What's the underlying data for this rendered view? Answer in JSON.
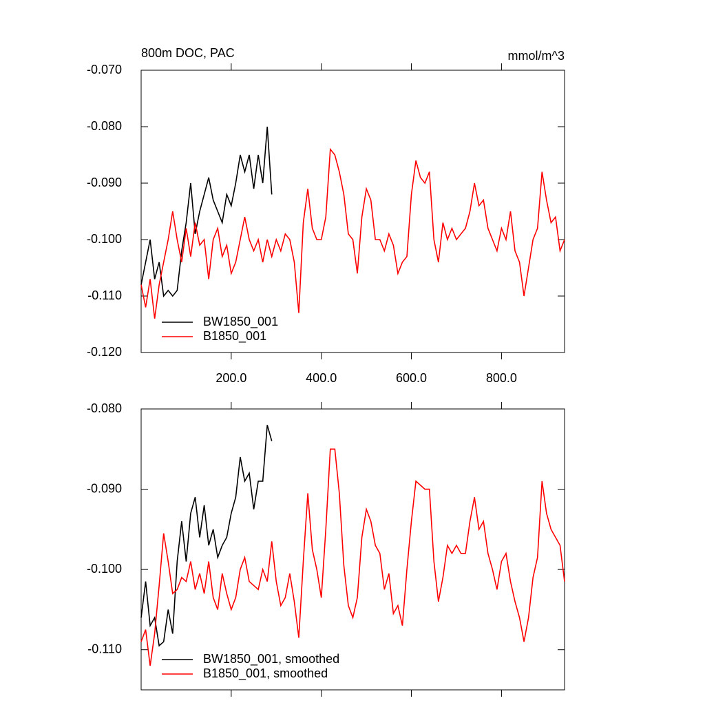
{
  "chart_data": [
    {
      "type": "line",
      "title": "800m DOC, PAC",
      "units": "mmol/m^3",
      "xlim": [
        0,
        940
      ],
      "ylim": [
        -0.12,
        -0.07
      ],
      "xticks": [
        {
          "value": 200,
          "label": "200.0"
        },
        {
          "value": 400,
          "label": "400.0"
        },
        {
          "value": 600,
          "label": "600.0"
        },
        {
          "value": 800,
          "label": "800.0"
        }
      ],
      "yticks": [
        {
          "value": -0.12,
          "label": "-0.120"
        },
        {
          "value": -0.11,
          "label": "-0.110"
        },
        {
          "value": -0.1,
          "label": "-0.100"
        },
        {
          "value": -0.09,
          "label": "-0.090"
        },
        {
          "value": -0.08,
          "label": "-0.080"
        },
        {
          "value": -0.07,
          "label": "-0.070"
        }
      ],
      "legend": "lower left",
      "series": [
        {
          "name": "BW1850_001",
          "color": "#000000",
          "x": [
            0,
            10,
            20,
            30,
            40,
            50,
            60,
            70,
            80,
            90,
            100,
            110,
            120,
            130,
            140,
            150,
            160,
            170,
            180,
            190,
            200,
            210,
            220,
            230,
            240,
            250,
            260,
            270,
            280,
            290
          ],
          "values": [
            -0.108,
            -0.104,
            -0.1,
            -0.107,
            -0.104,
            -0.11,
            -0.109,
            -0.11,
            -0.109,
            -0.102,
            -0.097,
            -0.09,
            -0.099,
            -0.095,
            -0.092,
            -0.089,
            -0.093,
            -0.095,
            -0.097,
            -0.092,
            -0.094,
            -0.09,
            -0.085,
            -0.088,
            -0.085,
            -0.091,
            -0.085,
            -0.09,
            -0.08,
            -0.092
          ]
        },
        {
          "name": "B1850_001",
          "color": "#ff0000",
          "x": [
            0,
            10,
            20,
            30,
            40,
            50,
            60,
            70,
            80,
            90,
            100,
            110,
            120,
            130,
            140,
            150,
            160,
            170,
            180,
            190,
            200,
            210,
            220,
            230,
            240,
            250,
            260,
            270,
            280,
            290,
            300,
            310,
            320,
            330,
            340,
            350,
            360,
            370,
            380,
            390,
            400,
            410,
            420,
            430,
            440,
            450,
            460,
            470,
            480,
            490,
            500,
            510,
            520,
            530,
            540,
            550,
            560,
            570,
            580,
            590,
            600,
            610,
            620,
            630,
            640,
            650,
            660,
            670,
            680,
            690,
            700,
            710,
            720,
            730,
            740,
            750,
            760,
            770,
            780,
            790,
            800,
            810,
            820,
            830,
            840,
            850,
            860,
            870,
            880,
            890,
            900,
            910,
            920,
            930,
            940
          ],
          "values": [
            -0.108,
            -0.112,
            -0.107,
            -0.114,
            -0.108,
            -0.104,
            -0.1,
            -0.095,
            -0.1,
            -0.104,
            -0.098,
            -0.103,
            -0.097,
            -0.101,
            -0.1,
            -0.107,
            -0.1,
            -0.098,
            -0.103,
            -0.101,
            -0.106,
            -0.104,
            -0.1,
            -0.096,
            -0.1,
            -0.102,
            -0.1,
            -0.104,
            -0.1,
            -0.103,
            -0.1,
            -0.102,
            -0.099,
            -0.1,
            -0.104,
            -0.113,
            -0.097,
            -0.091,
            -0.098,
            -0.1,
            -0.1,
            -0.096,
            -0.084,
            -0.085,
            -0.088,
            -0.092,
            -0.099,
            -0.1,
            -0.106,
            -0.096,
            -0.091,
            -0.093,
            -0.1,
            -0.1,
            -0.102,
            -0.099,
            -0.101,
            -0.106,
            -0.104,
            -0.103,
            -0.092,
            -0.086,
            -0.089,
            -0.09,
            -0.088,
            -0.1,
            -0.104,
            -0.097,
            -0.1,
            -0.098,
            -0.1,
            -0.099,
            -0.098,
            -0.095,
            -0.09,
            -0.094,
            -0.093,
            -0.098,
            -0.1,
            -0.102,
            -0.098,
            -0.1,
            -0.095,
            -0.102,
            -0.104,
            -0.11,
            -0.105,
            -0.1,
            -0.098,
            -0.088,
            -0.093,
            -0.097,
            -0.096,
            -0.102,
            -0.1
          ]
        }
      ]
    },
    {
      "type": "line",
      "xlim": [
        0,
        940
      ],
      "ylim": [
        -0.115,
        -0.08
      ],
      "xticks": [
        200,
        400,
        600,
        800
      ],
      "yticks": [
        {
          "value": -0.11,
          "label": "-0.110"
        },
        {
          "value": -0.1,
          "label": "-0.100"
        },
        {
          "value": -0.09,
          "label": "-0.090"
        },
        {
          "value": -0.08,
          "label": "-0.080"
        }
      ],
      "legend": "lower left",
      "series": [
        {
          "name": "BW1850_001, smoothed",
          "color": "#000000",
          "x": [
            0,
            10,
            20,
            30,
            40,
            50,
            60,
            70,
            80,
            90,
            100,
            110,
            120,
            130,
            140,
            150,
            160,
            170,
            180,
            190,
            200,
            210,
            220,
            230,
            240,
            250,
            260,
            270,
            280,
            290
          ],
          "values": [
            -0.106,
            -0.1015,
            -0.107,
            -0.106,
            -0.1095,
            -0.109,
            -0.105,
            -0.108,
            -0.099,
            -0.094,
            -0.099,
            -0.093,
            -0.091,
            -0.096,
            -0.092,
            -0.097,
            -0.095,
            -0.0985,
            -0.097,
            -0.096,
            -0.093,
            -0.091,
            -0.086,
            -0.089,
            -0.088,
            -0.0925,
            -0.089,
            -0.089,
            -0.082,
            -0.084
          ]
        },
        {
          "name": "B1850_001, smoothed",
          "color": "#ff0000",
          "x": [
            0,
            10,
            20,
            30,
            40,
            50,
            60,
            70,
            80,
            90,
            100,
            110,
            120,
            130,
            140,
            150,
            160,
            170,
            180,
            190,
            200,
            210,
            220,
            230,
            240,
            250,
            260,
            270,
            280,
            290,
            300,
            310,
            320,
            330,
            340,
            350,
            360,
            370,
            380,
            390,
            400,
            410,
            420,
            430,
            440,
            450,
            460,
            470,
            480,
            490,
            500,
            510,
            520,
            530,
            540,
            550,
            560,
            570,
            580,
            590,
            600,
            610,
            620,
            630,
            640,
            650,
            660,
            670,
            680,
            690,
            700,
            710,
            720,
            730,
            740,
            750,
            760,
            770,
            780,
            790,
            800,
            810,
            820,
            830,
            840,
            850,
            860,
            870,
            880,
            890,
            900,
            910,
            920,
            930,
            940
          ],
          "values": [
            -0.109,
            -0.1075,
            -0.112,
            -0.108,
            -0.102,
            -0.0955,
            -0.099,
            -0.103,
            -0.1025,
            -0.101,
            -0.1015,
            -0.099,
            -0.1025,
            -0.1005,
            -0.103,
            -0.099,
            -0.1035,
            -0.105,
            -0.1005,
            -0.103,
            -0.105,
            -0.1035,
            -0.1,
            -0.0985,
            -0.1015,
            -0.102,
            -0.1025,
            -0.1,
            -0.1015,
            -0.0965,
            -0.1015,
            -0.1045,
            -0.1035,
            -0.1005,
            -0.104,
            -0.1085,
            -0.099,
            -0.0905,
            -0.0975,
            -0.1,
            -0.1035,
            -0.095,
            -0.085,
            -0.085,
            -0.0905,
            -0.0995,
            -0.1045,
            -0.106,
            -0.1035,
            -0.096,
            -0.0925,
            -0.094,
            -0.097,
            -0.098,
            -0.1025,
            -0.1005,
            -0.1055,
            -0.1045,
            -0.107,
            -0.1,
            -0.094,
            -0.089,
            -0.0895,
            -0.09,
            -0.09,
            -0.099,
            -0.104,
            -0.101,
            -0.097,
            -0.098,
            -0.097,
            -0.098,
            -0.098,
            -0.094,
            -0.091,
            -0.095,
            -0.094,
            -0.098,
            -0.1,
            -0.1025,
            -0.099,
            -0.098,
            -0.1015,
            -0.104,
            -0.106,
            -0.109,
            -0.106,
            -0.101,
            -0.0985,
            -0.089,
            -0.093,
            -0.095,
            -0.096,
            -0.097,
            -0.1015
          ]
        }
      ]
    }
  ]
}
